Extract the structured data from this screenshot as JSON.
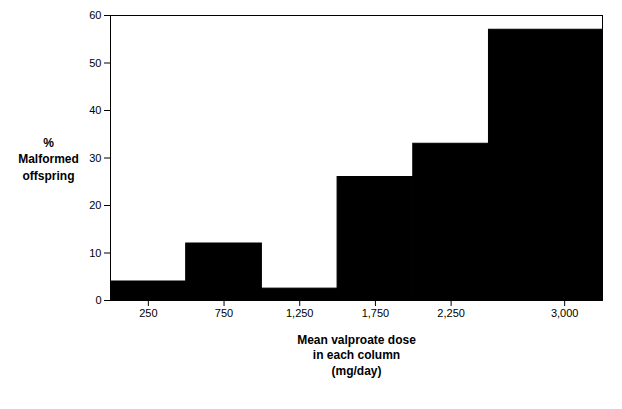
{
  "chart_data": {
    "type": "histogram",
    "bins": [
      0,
      500,
      1000,
      1500,
      2000,
      2500,
      3250
    ],
    "values": [
      4,
      12,
      2.5,
      26,
      33,
      57
    ],
    "color": "#000000",
    "xlim": [
      0,
      3250
    ],
    "xticks": [
      250,
      750,
      1250,
      1750,
      2250,
      3000
    ],
    "ylim": [
      0,
      60
    ],
    "yticks": [
      0,
      10,
      20,
      30,
      40,
      50,
      60
    ],
    "ylabel": [
      "%",
      "Malformed",
      "offspring"
    ],
    "xlabel": [
      "Mean valproate dose",
      "in each column",
      "(mg/day)"
    ],
    "grid": false
  }
}
